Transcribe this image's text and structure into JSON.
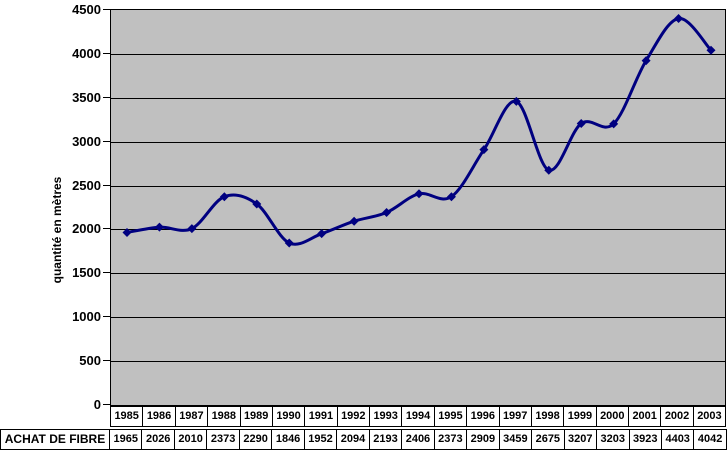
{
  "chart": {
    "plot_bg_color": "#c0c0c0",
    "grid_color": "#000000",
    "line_color": "#000080",
    "marker": "diamond-icon"
  },
  "chart_data": {
    "type": "line",
    "title": "",
    "series_name": "ACHAT DE FIBRE",
    "ylabel": "quantité en mètres",
    "xlabel": "",
    "categories": [
      "1985",
      "1986",
      "1987",
      "1988",
      "1989",
      "1990",
      "1991",
      "1992",
      "1993",
      "1994",
      "1995",
      "1996",
      "1997",
      "1998",
      "1999",
      "2000",
      "2001",
      "2002",
      "2003"
    ],
    "values": [
      1965,
      2026,
      2010,
      2373,
      2290,
      1846,
      1952,
      2094,
      2193,
      2406,
      2373,
      2909,
      3459,
      2675,
      3207,
      3203,
      3923,
      4403,
      4042
    ],
    "ylim": [
      0,
      4500
    ],
    "y_tick_step": 500,
    "y_tick_labels": [
      "4500",
      "4000",
      "3500",
      "3000",
      "2500",
      "2000",
      "1500",
      "1000",
      "500",
      "0"
    ],
    "grid": "horizontal",
    "legend": "none",
    "smoothed": true
  }
}
